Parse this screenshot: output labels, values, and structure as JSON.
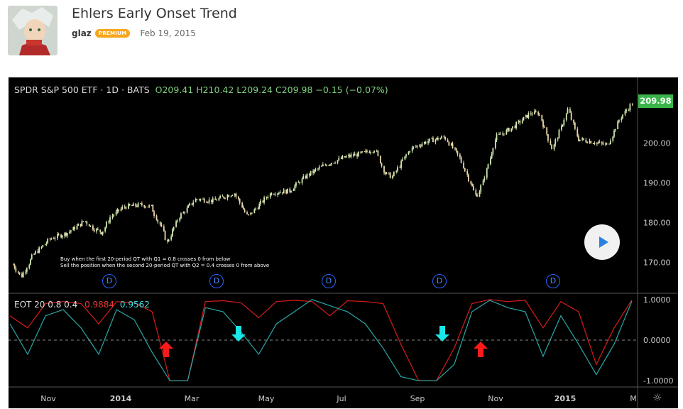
{
  "post": {
    "title": "Ehlers Early Onset Trend",
    "author": "glaz",
    "badge": "PREMIUM",
    "date": "Feb 19, 2015"
  },
  "chart_header": {
    "symbol": "SPDR S&P 500 ETF · 1D · BATS",
    "ohlc": "O209.41  H210.42  L209.24  C209.98  −0.15 (−0.07%)"
  },
  "indicator": {
    "name": "EOT 20 0.8 0.4",
    "value1": "0.9884",
    "value2": "0.9562"
  },
  "notes": {
    "line1": "Buy when the first 20-period QT with Q1 = 0.8 crosses 0 from below",
    "line2": "Sell the position when the second 20-period QT with Q2 = 0.4 crosses 0 from above"
  },
  "last_price": "209.98",
  "dividend_label": "D",
  "colors": {
    "up_candle": "#cfe8b0",
    "down_candle": "#e8d7a8",
    "q1_line": "#d81b1b",
    "q2_line": "#2aa7a7",
    "buy_arrow": "#ff1a1a",
    "sell_arrow": "#19e6e6",
    "price_tag": "#3ab44a"
  },
  "chart_data": [
    {
      "type": "candlestick",
      "ylim": [
        163,
        214
      ],
      "price_axis": [
        "200.00",
        "190.00",
        "180.00",
        "170.00"
      ],
      "time_axis": [
        "Nov",
        "2014",
        "Mar",
        "May",
        "Jul",
        "Sep",
        "Nov",
        "2015",
        "M"
      ],
      "close_series": [
        [
          "2013-10-01",
          169.5
        ],
        [
          "2013-10-08",
          166.5
        ],
        [
          "2013-10-18",
          172
        ],
        [
          "2013-11-01",
          176
        ],
        [
          "2013-11-15",
          177.5
        ],
        [
          "2013-11-29",
          180.5
        ],
        [
          "2013-12-06",
          178.5
        ],
        [
          "2013-12-13",
          177.5
        ],
        [
          "2013-12-20",
          181.5
        ],
        [
          "2013-12-31",
          184
        ],
        [
          "2014-01-15",
          184.5
        ],
        [
          "2014-01-22",
          184
        ],
        [
          "2014-01-31",
          178.5
        ],
        [
          "2014-02-04",
          175
        ],
        [
          "2014-02-14",
          181.5
        ],
        [
          "2014-02-28",
          186
        ],
        [
          "2014-03-14",
          185.5
        ],
        [
          "2014-03-31",
          187.5
        ],
        [
          "2014-04-11",
          181.5
        ],
        [
          "2014-04-30",
          187.5
        ],
        [
          "2014-05-15",
          188
        ],
        [
          "2014-05-30",
          192
        ],
        [
          "2014-06-13",
          194.5
        ],
        [
          "2014-06-30",
          196.5
        ],
        [
          "2014-07-15",
          197.5
        ],
        [
          "2014-07-24",
          198.5
        ],
        [
          "2014-08-01",
          192.5
        ],
        [
          "2014-08-07",
          191.5
        ],
        [
          "2014-08-22",
          198.5
        ],
        [
          "2014-09-05",
          200.5
        ],
        [
          "2014-09-19",
          201.5
        ],
        [
          "2014-10-01",
          196.5
        ],
        [
          "2014-10-15",
          186.5
        ],
        [
          "2014-10-20",
          190
        ],
        [
          "2014-10-31",
          201.5
        ],
        [
          "2014-11-14",
          204
        ],
        [
          "2014-11-28",
          207.5
        ],
        [
          "2014-12-05",
          207.5
        ],
        [
          "2014-12-16",
          198.5
        ],
        [
          "2014-12-29",
          208.5
        ],
        [
          "2015-01-06",
          201
        ],
        [
          "2015-01-15",
          200.5
        ],
        [
          "2015-01-30",
          199.5
        ],
        [
          "2015-02-10",
          206.5
        ],
        [
          "2015-02-19",
          209.98
        ]
      ],
      "dividend_markers": [
        "2013-12",
        "2014-03",
        "2014-06",
        "2014-09",
        "2014-12"
      ]
    },
    {
      "type": "line",
      "title": "EOT 20 0.8 0.4",
      "ylim": [
        -1,
        1
      ],
      "y_axis": [
        "1.0000",
        "0.0000",
        "-1.0000"
      ],
      "series": [
        {
          "name": "",
          "values": [
            0.6,
            0.3,
            0.9,
            0.95,
            0.9,
            0.4,
            0.95,
            0.92,
            0.7,
            -1,
            -1,
            0.95,
            0.97,
            0.92,
            0.55,
            0.95,
            0.98,
            0.95,
            0.6,
            0.97,
            0.95,
            0.9,
            -0.1,
            -1,
            -1,
            -0.2,
            0.9,
            1,
            0.95,
            0.98,
            0.3,
            0.95,
            0.7,
            -0.6,
            0.3,
            0.99
          ]
        },
        {
          "name": "",
          "values": [
            0.4,
            -0.35,
            0.6,
            0.75,
            0.3,
            -0.35,
            0.75,
            0.5,
            -0.3,
            -1,
            -1,
            0.8,
            0.7,
            0.2,
            -0.35,
            0.4,
            0.7,
            1,
            0.85,
            0.7,
            0.4,
            -0.2,
            -0.9,
            -1,
            -1,
            -0.6,
            0.7,
            0.98,
            0.8,
            0.7,
            -0.4,
            0.6,
            -0.1,
            -0.85,
            -0.1,
            0.96
          ]
        }
      ],
      "signals": [
        {
          "type": "buy",
          "date": "2014-02"
        },
        {
          "type": "sell",
          "date": "2014-04"
        },
        {
          "type": "sell",
          "date": "2014-09"
        },
        {
          "type": "buy",
          "date": "2014-10"
        }
      ]
    }
  ]
}
